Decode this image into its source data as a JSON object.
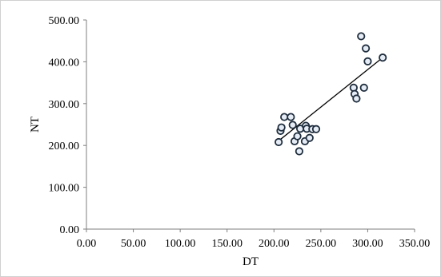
{
  "chart_data": {
    "type": "scatter",
    "title": "",
    "xlabel": "DT",
    "ylabel": "NT",
    "xlim": [
      0,
      350
    ],
    "ylim": [
      0,
      500
    ],
    "xticks": [
      0,
      50,
      100,
      150,
      200,
      250,
      300,
      350
    ],
    "yticks": [
      0,
      100,
      200,
      300,
      400,
      500
    ],
    "xtick_labels": [
      "0.00",
      "50.00",
      "100.00",
      "150.00",
      "200.00",
      "250.00",
      "300.00",
      "350.00"
    ],
    "ytick_labels": [
      "0.00",
      "100.00",
      "200.00",
      "300.00",
      "400.00",
      "500.00"
    ],
    "grid": false,
    "legend": "none",
    "series": [
      {
        "points": [
          {
            "x": 205,
            "y": 208
          },
          {
            "x": 207,
            "y": 235
          },
          {
            "x": 208,
            "y": 243
          },
          {
            "x": 211,
            "y": 268
          },
          {
            "x": 218,
            "y": 268
          },
          {
            "x": 220,
            "y": 249
          },
          {
            "x": 222,
            "y": 210
          },
          {
            "x": 225,
            "y": 222
          },
          {
            "x": 227,
            "y": 186
          },
          {
            "x": 228,
            "y": 240
          },
          {
            "x": 233,
            "y": 210
          },
          {
            "x": 234,
            "y": 247
          },
          {
            "x": 235,
            "y": 240
          },
          {
            "x": 238,
            "y": 218
          },
          {
            "x": 241,
            "y": 239
          },
          {
            "x": 245,
            "y": 239
          },
          {
            "x": 285,
            "y": 338
          },
          {
            "x": 286,
            "y": 323
          },
          {
            "x": 288,
            "y": 312
          },
          {
            "x": 293,
            "y": 461
          },
          {
            "x": 296,
            "y": 338
          },
          {
            "x": 298,
            "y": 432
          },
          {
            "x": 300,
            "y": 401
          },
          {
            "x": 316,
            "y": 410
          }
        ]
      }
    ],
    "trendline": {
      "type": "linear",
      "x_start": 205,
      "y_start": 211,
      "x_end": 316,
      "y_end": 410
    },
    "colors": {
      "marker_fill": "#e6ecf5",
      "marker_stroke": "#1f2d3d",
      "line": "#000000",
      "axis": "#7f7f7f"
    }
  }
}
